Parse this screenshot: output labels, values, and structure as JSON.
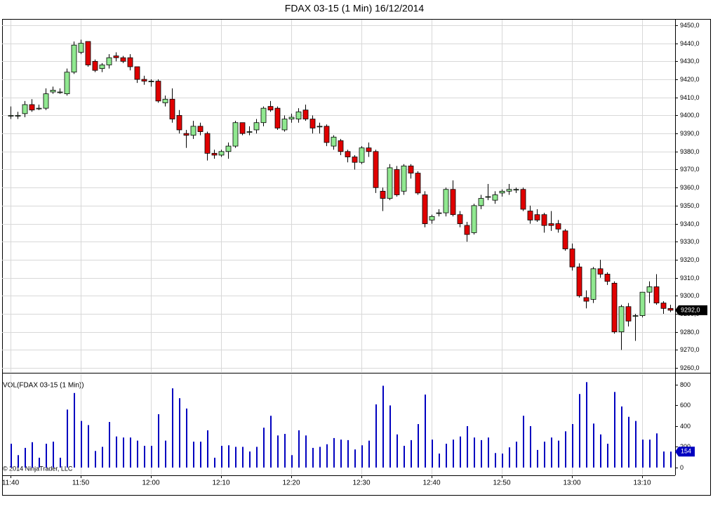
{
  "chart_data": [
    {
      "type": "candlestick",
      "title": "FDAX 03-15 (1 Min)  16/12/2014",
      "categories": [
        "11:40",
        null,
        null,
        null,
        null,
        null,
        null,
        null,
        null,
        null,
        "11:50",
        null,
        null,
        null,
        null,
        null,
        null,
        null,
        null,
        null,
        "12:00",
        null,
        null,
        null,
        null,
        null,
        null,
        null,
        null,
        null,
        "12:10",
        null,
        null,
        null,
        null,
        null,
        null,
        null,
        null,
        null,
        "12:20",
        null,
        null,
        null,
        null,
        null,
        null,
        null,
        null,
        null,
        "12:30",
        null,
        null,
        null,
        null,
        null,
        null,
        null,
        null,
        null,
        "12:40",
        null,
        null,
        null,
        null,
        null,
        null,
        null,
        null,
        null,
        "12:50",
        null,
        null,
        null,
        null,
        null,
        null,
        null,
        null,
        null,
        "13:00",
        null,
        null,
        null,
        null,
        null,
        null,
        null,
        null,
        null,
        "13:10",
        null,
        null,
        null,
        null
      ],
      "open": [
        9400,
        9400,
        9401,
        9406,
        9404,
        9404,
        9413,
        9413,
        9412,
        9424,
        9435,
        9441,
        9430,
        9426,
        9428,
        9433,
        9432,
        9432,
        9427,
        9420,
        9419,
        9419,
        9407,
        9409,
        9400,
        9390,
        9389,
        9394,
        9390,
        9379,
        9378,
        9380,
        9383,
        9396,
        9391,
        9392,
        9396,
        9405,
        9404,
        9392,
        9398,
        9398,
        9403,
        9398,
        9394,
        9394,
        9383,
        9386,
        9380,
        9377,
        9374,
        9382,
        9380,
        9358,
        9354,
        9370,
        9358,
        9372,
        9368,
        9356,
        9342,
        9346,
        9346,
        9359,
        9345,
        9339,
        9335,
        9350,
        9355,
        9353,
        9357,
        9358,
        9359,
        9359,
        9347,
        9345,
        9345,
        9340,
        9340,
        9336,
        9326,
        9316,
        9299,
        9298,
        9315,
        9312,
        9307,
        9280,
        9294,
        9289,
        9289,
        9302,
        9305,
        9296,
        9293
      ],
      "high": [
        9405,
        9402,
        9408,
        9409,
        9406,
        9415,
        9416,
        9415,
        9426,
        9441,
        9442,
        9441,
        9431,
        9429,
        9434,
        9435,
        9433,
        9434,
        9427,
        9422,
        9420,
        9420,
        9411,
        9415,
        9403,
        9392,
        9397,
        9396,
        9391,
        9381,
        9381,
        9385,
        9397,
        9396,
        9394,
        9398,
        9405,
        9408,
        9405,
        9400,
        9401,
        9404,
        9406,
        9400,
        9396,
        9395,
        9389,
        9387,
        9381,
        9378,
        9383,
        9385,
        9381,
        9360,
        9373,
        9372,
        9373,
        9373,
        9369,
        9358,
        9345,
        9348,
        9360,
        9364,
        9347,
        9341,
        9351,
        9356,
        9362,
        9358,
        9359,
        9362,
        9360,
        9360,
        9350,
        9348,
        9346,
        9347,
        9342,
        9337,
        9329,
        9318,
        9303,
        9316,
        9320,
        9313,
        9308,
        9295,
        9296,
        9290,
        9302,
        9308,
        9312,
        9297,
        9295
      ],
      "low": [
        9398,
        9398,
        9399,
        9402,
        9403,
        9403,
        9412,
        9412,
        9411,
        9423,
        9434,
        9427,
        9424,
        9424,
        9426,
        9430,
        9429,
        9425,
        9418,
        9417,
        9416,
        9407,
        9405,
        9396,
        9390,
        9382,
        9387,
        9389,
        9375,
        9376,
        9377,
        9376,
        9382,
        9389,
        9389,
        9390,
        9394,
        9402,
        9392,
        9391,
        9396,
        9396,
        9397,
        9390,
        9390,
        9383,
        9381,
        9378,
        9374,
        9370,
        9373,
        9377,
        9357,
        9347,
        9353,
        9355,
        9356,
        9365,
        9356,
        9338,
        9340,
        9344,
        9344,
        9344,
        9338,
        9330,
        9334,
        9348,
        9353,
        9351,
        9355,
        9356,
        9357,
        9347,
        9340,
        9341,
        9335,
        9336,
        9335,
        9325,
        9314,
        9299,
        9293,
        9296,
        9310,
        9306,
        9279,
        9270,
        9283,
        9275,
        9288,
        9296,
        9295,
        9290,
        9291
      ],
      "close": [
        9400,
        9400,
        9406,
        9403,
        9404,
        9412,
        9414,
        9413,
        9424,
        9439,
        9440,
        9428,
        9425,
        9428,
        9432,
        9432,
        9430,
        9427,
        9420,
        9419,
        9419,
        9408,
        9409,
        9398,
        9392,
        9389,
        9394,
        9391,
        9379,
        9378,
        9380,
        9383,
        9396,
        9390,
        9391,
        9396,
        9404,
        9403,
        9393,
        9398,
        9399,
        9402,
        9398,
        9393,
        9394,
        9385,
        9388,
        9380,
        9377,
        9374,
        9382,
        9380,
        9360,
        9354,
        9371,
        9356,
        9372,
        9368,
        9357,
        9340,
        9344,
        9346,
        9359,
        9345,
        9340,
        9334,
        9350,
        9354,
        9355,
        9356,
        9358,
        9359,
        9359,
        9348,
        9342,
        9342,
        9339,
        9339,
        9337,
        9326,
        9316,
        9300,
        9297,
        9315,
        9312,
        9308,
        9280,
        9294,
        9286,
        9289,
        9302,
        9305,
        9296,
        9293,
        9292
      ],
      "up_color": "#90e890",
      "down_color": "#e00000",
      "ylim": [
        9257.7,
        9453.1
      ],
      "yticks": [
        {
          "value": 9260,
          "label": "9260,0"
        },
        {
          "value": 9270,
          "label": "9270,0"
        },
        {
          "value": 9280,
          "label": "9280,0"
        },
        {
          "value": 9290,
          "label": "9290,0"
        },
        {
          "value": 9300,
          "label": "9300,0"
        },
        {
          "value": 9310,
          "label": "9310,0"
        },
        {
          "value": 9320,
          "label": "9320,0"
        },
        {
          "value": 9330,
          "label": "9330,0"
        },
        {
          "value": 9340,
          "label": "9340,0"
        },
        {
          "value": 9350,
          "label": "9350,0"
        },
        {
          "value": 9360,
          "label": "9360,0"
        },
        {
          "value": 9370,
          "label": "9370,0"
        },
        {
          "value": 9380,
          "label": "9380,0"
        },
        {
          "value": 9390,
          "label": "9390,0"
        },
        {
          "value": 9400,
          "label": "9400,0"
        },
        {
          "value": 9410,
          "label": "9410,0"
        },
        {
          "value": 9420,
          "label": "9420,0"
        },
        {
          "value": 9430,
          "label": "9430,0"
        },
        {
          "value": 9440,
          "label": "9440,0"
        },
        {
          "value": 9450,
          "label": "9450,0"
        }
      ],
      "price_marker": {
        "value": 9292,
        "label": "9292,0"
      },
      "grid": true
    },
    {
      "type": "bar",
      "title": "VOL(FDAX 03-15 (1 Min))",
      "values": [
        230,
        120,
        190,
        245,
        95,
        230,
        250,
        95,
        560,
        720,
        450,
        410,
        160,
        200,
        440,
        300,
        290,
        290,
        260,
        210,
        210,
        515,
        260,
        765,
        670,
        570,
        250,
        250,
        360,
        95,
        210,
        215,
        200,
        200,
        155,
        200,
        385,
        500,
        310,
        325,
        120,
        360,
        310,
        190,
        200,
        225,
        285,
        270,
        265,
        175,
        215,
        260,
        610,
        790,
        600,
        320,
        210,
        265,
        420,
        705,
        270,
        135,
        230,
        270,
        300,
        400,
        290,
        265,
        290,
        140,
        135,
        195,
        250,
        500,
        400,
        170,
        250,
        290,
        260,
        350,
        420,
        710,
        825,
        425,
        320,
        230,
        730,
        590,
        490,
        450,
        270,
        270,
        330,
        155,
        154
      ],
      "color": "#0000c0",
      "ylim": [
        -68,
        888
      ],
      "yticks": [
        0,
        200,
        400,
        600,
        800
      ],
      "grid": true
    }
  ],
  "copyright": "© 2014 NinjaTrader, LLC"
}
